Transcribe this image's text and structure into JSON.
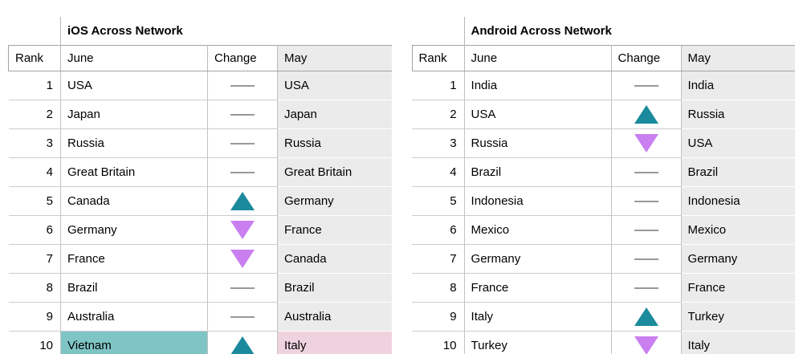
{
  "colors": {
    "up_arrow": "#1a8a9c",
    "down_arrow": "#c97ff0",
    "no_change_dash": "#999999",
    "may_column_bg": "#ebebeb",
    "highlight_june_cell": "#7fc5c6",
    "highlight_may_cell": "#eed3de"
  },
  "tables": [
    {
      "title": "iOS Across Network",
      "headers": {
        "rank": "Rank",
        "june": "June",
        "change": "Change",
        "may": "May"
      },
      "rows": [
        {
          "rank": "1",
          "june": "USA",
          "change": "same",
          "may": "USA"
        },
        {
          "rank": "2",
          "june": "Japan",
          "change": "same",
          "may": "Japan"
        },
        {
          "rank": "3",
          "june": "Russia",
          "change": "same",
          "may": "Russia"
        },
        {
          "rank": "4",
          "june": "Great Britain",
          "change": "same",
          "may": "Great Britain"
        },
        {
          "rank": "5",
          "june": "Canada",
          "change": "up",
          "may": "Germany"
        },
        {
          "rank": "6",
          "june": "Germany",
          "change": "down",
          "may": "France"
        },
        {
          "rank": "7",
          "june": "France",
          "change": "down",
          "may": "Canada"
        },
        {
          "rank": "8",
          "june": "Brazil",
          "change": "same",
          "may": "Brazil"
        },
        {
          "rank": "9",
          "june": "Australia",
          "change": "same",
          "may": "Australia"
        },
        {
          "rank": "10",
          "june": "Vietnam",
          "change": "up",
          "may": "Italy",
          "june_highlight": true,
          "may_highlight": true
        }
      ]
    },
    {
      "title": "Android Across Network",
      "headers": {
        "rank": "Rank",
        "june": "June",
        "change": "Change",
        "may": "May"
      },
      "rows": [
        {
          "rank": "1",
          "june": "India",
          "change": "same",
          "may": "India"
        },
        {
          "rank": "2",
          "june": "USA",
          "change": "up",
          "may": "Russia"
        },
        {
          "rank": "3",
          "june": "Russia",
          "change": "down",
          "may": "USA"
        },
        {
          "rank": "4",
          "june": "Brazil",
          "change": "same",
          "may": "Brazil"
        },
        {
          "rank": "5",
          "june": "Indonesia",
          "change": "same",
          "may": "Indonesia"
        },
        {
          "rank": "6",
          "june": "Mexico",
          "change": "same",
          "may": "Mexico"
        },
        {
          "rank": "7",
          "june": "Germany",
          "change": "same",
          "may": "Germany"
        },
        {
          "rank": "8",
          "june": "France",
          "change": "same",
          "may": "France"
        },
        {
          "rank": "9",
          "june": "Italy",
          "change": "up",
          "may": "Turkey"
        },
        {
          "rank": "10",
          "june": "Turkey",
          "change": "down",
          "may": "Italy"
        }
      ]
    }
  ],
  "chart_data": [
    {
      "type": "table",
      "title": "iOS Across Network",
      "columns": [
        "Rank",
        "June",
        "Change",
        "May"
      ],
      "rows": [
        [
          1,
          "USA",
          "same",
          "USA"
        ],
        [
          2,
          "Japan",
          "same",
          "Japan"
        ],
        [
          3,
          "Russia",
          "same",
          "Russia"
        ],
        [
          4,
          "Great Britain",
          "same",
          "Great Britain"
        ],
        [
          5,
          "Canada",
          "up",
          "Germany"
        ],
        [
          6,
          "Germany",
          "down",
          "France"
        ],
        [
          7,
          "France",
          "down",
          "Canada"
        ],
        [
          8,
          "Brazil",
          "same",
          "Brazil"
        ],
        [
          9,
          "Australia",
          "same",
          "Australia"
        ],
        [
          10,
          "Vietnam",
          "up",
          "Italy"
        ]
      ],
      "annotations": [
        "Row 10 June cell 'Vietnam' highlighted teal",
        "Row 10 May cell 'Italy' highlighted pink"
      ]
    },
    {
      "type": "table",
      "title": "Android Across Network",
      "columns": [
        "Rank",
        "June",
        "Change",
        "May"
      ],
      "rows": [
        [
          1,
          "India",
          "same",
          "India"
        ],
        [
          2,
          "USA",
          "up",
          "Russia"
        ],
        [
          3,
          "Russia",
          "down",
          "USA"
        ],
        [
          4,
          "Brazil",
          "same",
          "Brazil"
        ],
        [
          5,
          "Indonesia",
          "same",
          "Indonesia"
        ],
        [
          6,
          "Mexico",
          "same",
          "Mexico"
        ],
        [
          7,
          "Germany",
          "same",
          "Germany"
        ],
        [
          8,
          "France",
          "same",
          "France"
        ],
        [
          9,
          "Italy",
          "up",
          "Turkey"
        ],
        [
          10,
          "Turkey",
          "down",
          "Italy"
        ]
      ]
    }
  ]
}
